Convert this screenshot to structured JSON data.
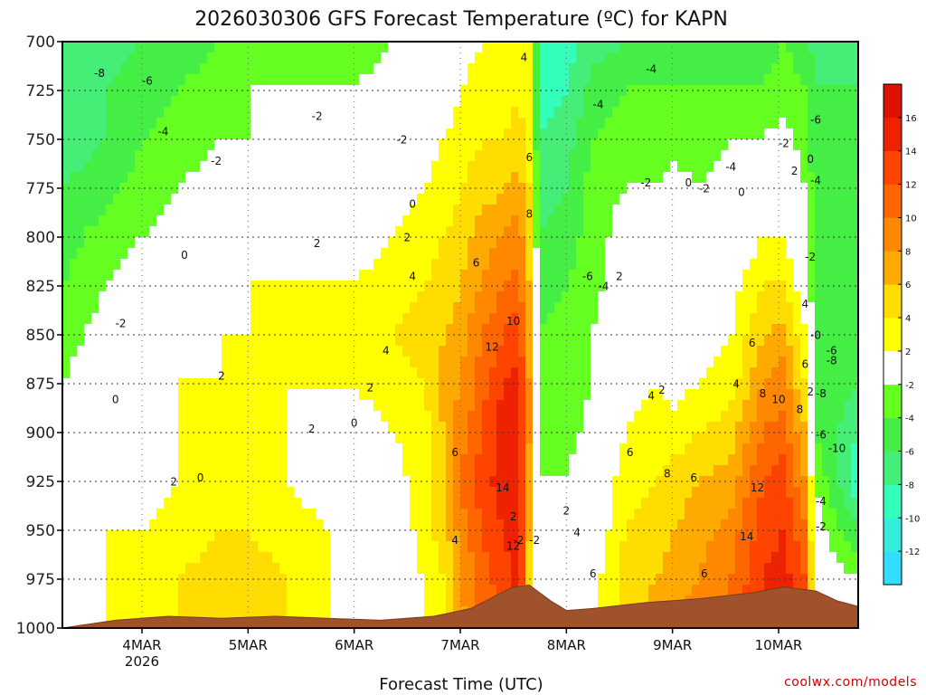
{
  "chart_data": {
    "type": "heatmap",
    "title": "2026030306 GFS Forecast Temperature (ºC) for KAPN",
    "xlabel": "Forecast Time (UTC)",
    "ylabel": "",
    "credit": "coolwx.com/models",
    "y_axis": {
      "unit": "hPa",
      "inverted": true,
      "range": [
        1000,
        700
      ],
      "ticks": [
        700,
        725,
        750,
        775,
        800,
        825,
        850,
        875,
        900,
        925,
        950,
        975,
        1000
      ]
    },
    "x_axis": {
      "range_days": [
        0,
        7.5
      ],
      "ticks": [
        {
          "day": 0.75,
          "label": "4MAR",
          "sub": "2026"
        },
        {
          "day": 1.75,
          "label": "5MAR",
          "sub": ""
        },
        {
          "day": 2.75,
          "label": "6MAR",
          "sub": ""
        },
        {
          "day": 3.75,
          "label": "7MAR",
          "sub": ""
        },
        {
          "day": 4.75,
          "label": "8MAR",
          "sub": ""
        },
        {
          "day": 5.75,
          "label": "9MAR",
          "sub": ""
        },
        {
          "day": 6.75,
          "label": "10MAR",
          "sub": ""
        }
      ]
    },
    "colorbar": {
      "levels": [
        -14,
        -12,
        -10,
        -8,
        -6,
        -4,
        -2,
        2,
        4,
        6,
        8,
        10,
        12,
        14,
        16,
        18
      ],
      "tick_labels": [
        "-12",
        "-10",
        "-8",
        "-6",
        "-4",
        "-2",
        "2",
        "4",
        "6",
        "8",
        "10",
        "12",
        "14",
        "16"
      ],
      "colors": [
        "#33ddff",
        "#33eedd",
        "#33ffbb",
        "#44ee77",
        "#44ee44",
        "#66ff22",
        "#ffffff",
        "#ffff00",
        "#ffdd00",
        "#ffaa00",
        "#ff8800",
        "#ff6600",
        "#ff4400",
        "#ee2200",
        "#dd1100"
      ]
    },
    "temperature_profiles": [
      {
        "day": 0.0,
        "t": [
          -8,
          -8,
          -7,
          -6,
          -5,
          -4,
          -3,
          -2,
          -1,
          0,
          0,
          1,
          1
        ]
      },
      {
        "day": 0.4,
        "t": [
          -7,
          -6,
          -6,
          -5,
          -3,
          -2,
          -1,
          0,
          0,
          1,
          2,
          2,
          2
        ]
      },
      {
        "day": 0.75,
        "t": [
          -6,
          -5,
          -4,
          -3,
          -2,
          -1,
          0,
          1,
          1,
          1,
          2,
          3,
          3
        ]
      },
      {
        "day": 1.1,
        "t": [
          -5,
          -4,
          -3,
          -2,
          -1,
          0,
          1,
          2,
          2,
          2,
          3,
          4,
          4
        ]
      },
      {
        "day": 1.5,
        "t": [
          -4,
          -3,
          -2,
          -1,
          0,
          1,
          2,
          2,
          3,
          3,
          4,
          5,
          5
        ]
      },
      {
        "day": 1.75,
        "t": [
          -3,
          -2,
          -2,
          -1,
          1,
          2,
          2,
          3,
          3,
          3,
          4,
          5,
          5
        ]
      },
      {
        "day": 2.1,
        "t": [
          -3,
          -2,
          -1,
          0,
          1,
          2,
          2,
          2,
          2,
          2,
          3,
          4,
          4
        ]
      },
      {
        "day": 2.5,
        "t": [
          -3,
          -2,
          -1,
          0,
          1,
          2,
          3,
          2,
          1,
          1,
          2,
          2,
          2
        ]
      },
      {
        "day": 2.75,
        "t": [
          -3,
          -2,
          -1,
          0,
          1,
          2,
          3,
          2,
          1,
          0,
          0,
          1,
          1
        ]
      },
      {
        "day": 3.1,
        "t": [
          -2,
          -1,
          0,
          1,
          2,
          3,
          4,
          3,
          2,
          1,
          0,
          0,
          1
        ]
      },
      {
        "day": 3.4,
        "t": [
          -1,
          0,
          1,
          2,
          3,
          4,
          5,
          4,
          3,
          3,
          3,
          2,
          2
        ]
      },
      {
        "day": 3.6,
        "t": [
          0,
          1,
          2,
          3,
          4,
          5,
          6,
          7,
          6,
          6,
          5,
          4,
          4
        ]
      },
      {
        "day": 3.75,
        "t": [
          1,
          2,
          3,
          4,
          5,
          6,
          7,
          8,
          9,
          10,
          9,
          8,
          7
        ]
      },
      {
        "day": 3.95,
        "t": [
          2,
          3,
          4,
          5,
          7,
          8,
          10,
          11,
          12,
          13,
          12,
          11,
          10
        ]
      },
      {
        "day": 4.15,
        "t": [
          3,
          3,
          4,
          6,
          8,
          10,
          12,
          14,
          15,
          15,
          14,
          13,
          12
        ]
      },
      {
        "day": 4.3,
        "t": [
          4,
          4,
          5,
          7,
          9,
          11,
          13,
          15,
          16,
          16,
          15,
          15,
          14
        ]
      },
      {
        "day": 4.4,
        "t": [
          2,
          2,
          3,
          4,
          5,
          6,
          7,
          8,
          8,
          7,
          6,
          5,
          4
        ]
      },
      {
        "day": 4.5,
        "t": [
          -10,
          -9,
          -8,
          -7,
          -6,
          -5,
          -4,
          -3,
          -3,
          -2,
          -2,
          0,
          0
        ]
      },
      {
        "day": 4.75,
        "t": [
          -9,
          -8,
          -7,
          -6,
          -5,
          -4,
          -3,
          -3,
          -3,
          -2,
          -2,
          -1,
          -1
        ]
      },
      {
        "day": 5.0,
        "t": [
          -7,
          -5,
          -4,
          -3,
          -3,
          -3,
          -2,
          -2,
          -1,
          0,
          0,
          1,
          1
        ]
      },
      {
        "day": 5.3,
        "t": [
          -6,
          -4,
          -3,
          -2,
          -1,
          0,
          2,
          1,
          2,
          3,
          4,
          5,
          5
        ]
      },
      {
        "day": 5.6,
        "t": [
          -6,
          -4,
          -3,
          -2,
          -1,
          0,
          1,
          2,
          3,
          4,
          5,
          6,
          7
        ]
      },
      {
        "day": 5.75,
        "t": [
          -6,
          -4,
          -3,
          -1,
          0,
          0,
          0,
          1,
          3,
          5,
          6,
          7,
          8
        ]
      },
      {
        "day": 6.0,
        "t": [
          -5,
          -4,
          -3,
          -2,
          -1,
          0,
          1,
          2,
          4,
          6,
          7,
          8,
          9
        ]
      },
      {
        "day": 6.3,
        "t": [
          -5,
          -4,
          -2,
          -1,
          0,
          1,
          2,
          3,
          5,
          7,
          9,
          10,
          11
        ]
      },
      {
        "day": 6.6,
        "t": [
          -5,
          -4,
          -2,
          0,
          2,
          4,
          6,
          8,
          10,
          12,
          13,
          14,
          14
        ]
      },
      {
        "day": 6.8,
        "t": [
          -4,
          -3,
          -1,
          1,
          2,
          4,
          7,
          9,
          11,
          13,
          14,
          15,
          15
        ]
      },
      {
        "day": 7.0,
        "t": [
          -5,
          -4,
          -3,
          -2,
          -1,
          0,
          2,
          4,
          6,
          8,
          10,
          12,
          12
        ]
      },
      {
        "day": 7.1,
        "t": [
          -7,
          -6,
          -6,
          -5,
          -4,
          -4,
          -4,
          -4,
          -4,
          -2,
          -1,
          0,
          0
        ]
      },
      {
        "day": 7.5,
        "t": [
          -6,
          -6,
          -6,
          -6,
          -6,
          -6,
          -6,
          -6,
          -8,
          -10,
          -6,
          -2,
          -2
        ]
      }
    ],
    "terrain": [
      {
        "day": 0.0,
        "hpa": 1000
      },
      {
        "day": 0.5,
        "hpa": 996
      },
      {
        "day": 1.0,
        "hpa": 994
      },
      {
        "day": 1.5,
        "hpa": 995
      },
      {
        "day": 2.0,
        "hpa": 994
      },
      {
        "day": 2.5,
        "hpa": 995
      },
      {
        "day": 3.0,
        "hpa": 996
      },
      {
        "day": 3.5,
        "hpa": 994
      },
      {
        "day": 3.85,
        "hpa": 990
      },
      {
        "day": 4.1,
        "hpa": 983
      },
      {
        "day": 4.25,
        "hpa": 979
      },
      {
        "day": 4.4,
        "hpa": 978
      },
      {
        "day": 4.6,
        "hpa": 986
      },
      {
        "day": 4.75,
        "hpa": 991
      },
      {
        "day": 5.0,
        "hpa": 990
      },
      {
        "day": 5.5,
        "hpa": 987
      },
      {
        "day": 6.0,
        "hpa": 985
      },
      {
        "day": 6.5,
        "hpa": 982
      },
      {
        "day": 6.8,
        "hpa": 979
      },
      {
        "day": 7.1,
        "hpa": 981
      },
      {
        "day": 7.3,
        "hpa": 986
      },
      {
        "day": 7.5,
        "hpa": 989
      }
    ],
    "contour_labels": [
      {
        "text": "-8",
        "day": 0.35,
        "hpa": 718
      },
      {
        "text": "-6",
        "day": 0.8,
        "hpa": 722
      },
      {
        "text": "-4",
        "day": 0.95,
        "hpa": 748
      },
      {
        "text": "-2",
        "day": 1.45,
        "hpa": 763
      },
      {
        "text": "-2",
        "day": 2.4,
        "hpa": 740
      },
      {
        "text": "-2",
        "day": 3.2,
        "hpa": 752
      },
      {
        "text": "-2",
        "day": 0.55,
        "hpa": 846
      },
      {
        "text": "0",
        "day": 1.15,
        "hpa": 811
      },
      {
        "text": "2",
        "day": 2.4,
        "hpa": 805
      },
      {
        "text": "0",
        "day": 3.3,
        "hpa": 785
      },
      {
        "text": "2",
        "day": 3.25,
        "hpa": 802
      },
      {
        "text": "4",
        "day": 3.3,
        "hpa": 822
      },
      {
        "text": "4",
        "day": 3.05,
        "hpa": 860
      },
      {
        "text": "0",
        "day": 0.5,
        "hpa": 885
      },
      {
        "text": "2",
        "day": 1.5,
        "hpa": 873
      },
      {
        "text": "2",
        "day": 2.9,
        "hpa": 879
      },
      {
        "text": "2",
        "day": 2.35,
        "hpa": 900
      },
      {
        "text": "0",
        "day": 2.75,
        "hpa": 897
      },
      {
        "text": "2",
        "day": 1.05,
        "hpa": 927
      },
      {
        "text": "0",
        "day": 1.3,
        "hpa": 925
      },
      {
        "text": "4",
        "day": 3.7,
        "hpa": 957
      },
      {
        "text": "6",
        "day": 3.7,
        "hpa": 912
      },
      {
        "text": "6",
        "day": 3.9,
        "hpa": 815
      },
      {
        "text": "12",
        "day": 4.05,
        "hpa": 858
      },
      {
        "text": "10",
        "day": 4.25,
        "hpa": 845
      },
      {
        "text": "14",
        "day": 4.15,
        "hpa": 930
      },
      {
        "text": "12",
        "day": 4.25,
        "hpa": 960
      },
      {
        "text": "4",
        "day": 4.35,
        "hpa": 710
      },
      {
        "text": "6",
        "day": 4.4,
        "hpa": 761
      },
      {
        "text": "8",
        "day": 4.4,
        "hpa": 790
      },
      {
        "text": "-4",
        "day": 5.05,
        "hpa": 734
      },
      {
        "text": "-2",
        "day": 5.5,
        "hpa": 774
      },
      {
        "text": "0",
        "day": 5.9,
        "hpa": 774
      },
      {
        "text": "-2",
        "day": 6.05,
        "hpa": 777
      },
      {
        "text": "0",
        "day": 6.4,
        "hpa": 779
      },
      {
        "text": "-4",
        "day": 5.55,
        "hpa": 716
      },
      {
        "text": "-4",
        "day": 6.3,
        "hpa": 766
      },
      {
        "text": "-2",
        "day": 6.8,
        "hpa": 754
      },
      {
        "text": "0",
        "day": 7.05,
        "hpa": 762
      },
      {
        "text": "-4",
        "day": 7.1,
        "hpa": 773
      },
      {
        "text": "2",
        "day": 6.9,
        "hpa": 768
      },
      {
        "text": "-6",
        "day": 7.1,
        "hpa": 742
      },
      {
        "text": "-6",
        "day": 4.95,
        "hpa": 822
      },
      {
        "text": "-4",
        "day": 5.1,
        "hpa": 827
      },
      {
        "text": "2",
        "day": 5.25,
        "hpa": 822
      },
      {
        "text": "-2",
        "day": 7.05,
        "hpa": 812
      },
      {
        "text": "4",
        "day": 5.55,
        "hpa": 883
      },
      {
        "text": "2",
        "day": 5.65,
        "hpa": 880
      },
      {
        "text": "4",
        "day": 6.35,
        "hpa": 877
      },
      {
        "text": "6",
        "day": 6.5,
        "hpa": 856
      },
      {
        "text": "8",
        "day": 6.6,
        "hpa": 882
      },
      {
        "text": "10",
        "day": 6.75,
        "hpa": 885
      },
      {
        "text": "8",
        "day": 6.95,
        "hpa": 890
      },
      {
        "text": "4",
        "day": 7.0,
        "hpa": 836
      },
      {
        "text": "6",
        "day": 7.0,
        "hpa": 867
      },
      {
        "text": "2",
        "day": 7.05,
        "hpa": 881
      },
      {
        "text": "6",
        "day": 5.35,
        "hpa": 912
      },
      {
        "text": "8",
        "day": 5.7,
        "hpa": 923
      },
      {
        "text": "6",
        "day": 5.95,
        "hpa": 925
      },
      {
        "text": "12",
        "day": 6.55,
        "hpa": 930
      },
      {
        "text": "14",
        "day": 6.45,
        "hpa": 955
      },
      {
        "text": "2",
        "day": 4.25,
        "hpa": 945
      },
      {
        "text": "-2",
        "day": 4.3,
        "hpa": 957
      },
      {
        "text": "2",
        "day": 4.75,
        "hpa": 942
      },
      {
        "text": "4",
        "day": 4.85,
        "hpa": 953
      },
      {
        "text": "6",
        "day": 5.0,
        "hpa": 974
      },
      {
        "text": "6",
        "day": 6.05,
        "hpa": 974
      },
      {
        "text": "-2",
        "day": 4.45,
        "hpa": 957
      },
      {
        "text": "-6",
        "day": 7.25,
        "hpa": 860
      },
      {
        "text": "-8",
        "day": 7.25,
        "hpa": 865
      },
      {
        "text": "-8",
        "day": 7.15,
        "hpa": 882
      },
      {
        "text": "-6",
        "day": 7.15,
        "hpa": 903
      },
      {
        "text": "-10",
        "day": 7.3,
        "hpa": 910
      },
      {
        "text": "-4",
        "day": 7.15,
        "hpa": 937
      },
      {
        "text": "-2",
        "day": 7.15,
        "hpa": 950
      },
      {
        "text": "-0",
        "day": 7.1,
        "hpa": 852
      }
    ]
  }
}
